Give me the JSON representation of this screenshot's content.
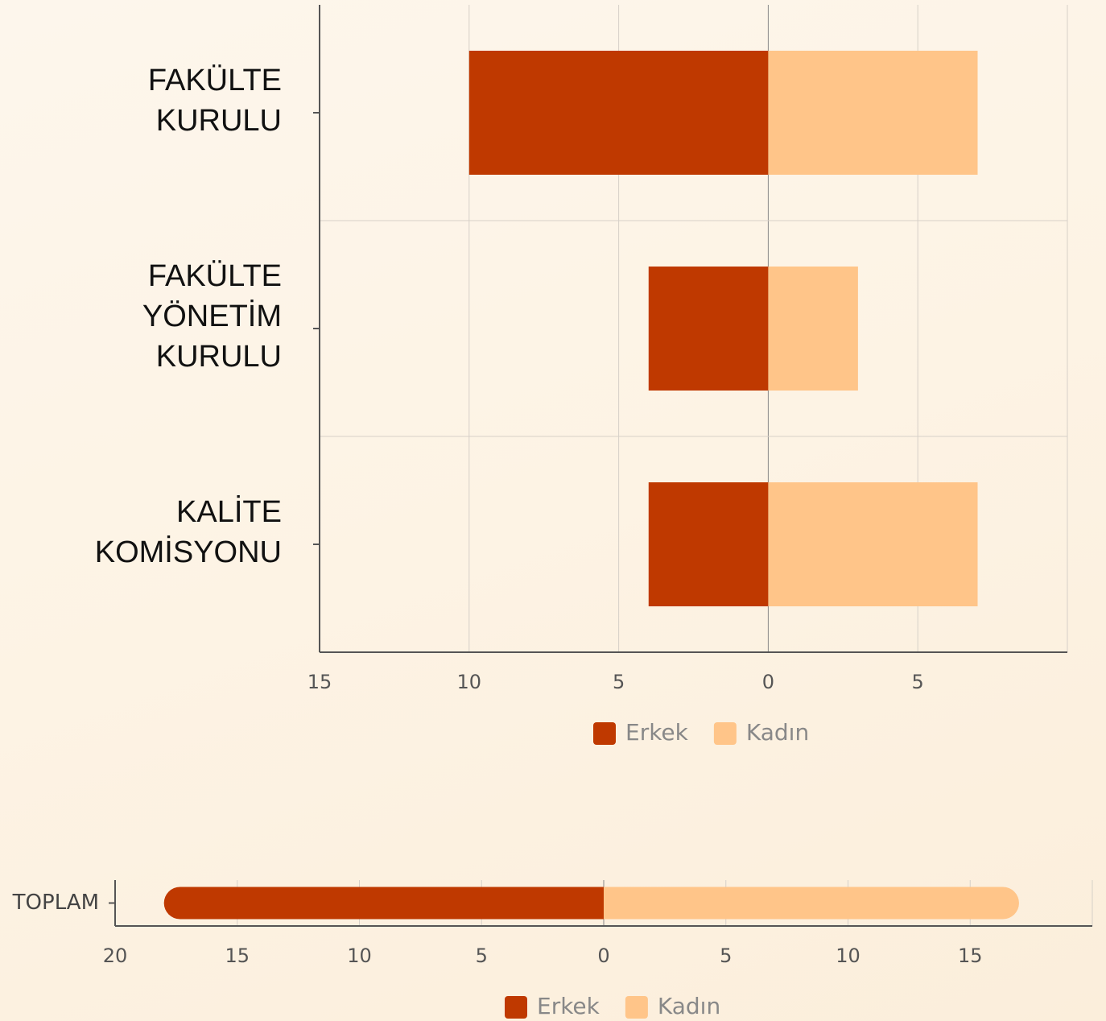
{
  "chart_data": [
    {
      "type": "bar",
      "orientation": "horizontal",
      "categories": [
        "FAKÜLTE KURULU",
        "FAKÜLTE YÖNETİM KURULU",
        "KALİTE KOMİSYONU"
      ],
      "series": [
        {
          "name": "Erkek",
          "color": "#bf3900",
          "values": [
            -10,
            -4,
            -4
          ]
        },
        {
          "name": "Kadın",
          "color": "#ffc589",
          "values": [
            7,
            3,
            7
          ]
        }
      ],
      "xlim": [
        -15,
        10
      ],
      "xticks": [
        {
          "value": -15,
          "label": "15"
        },
        {
          "value": -10,
          "label": "10"
        },
        {
          "value": -5,
          "label": "5"
        },
        0,
        5
      ],
      "grid": true,
      "legend": "bottom"
    },
    {
      "type": "bar",
      "orientation": "horizontal",
      "categories": [
        "TOPLAM"
      ],
      "series": [
        {
          "name": "Erkek",
          "color": "#bf3900",
          "values": [
            -18
          ]
        },
        {
          "name": "Kadın",
          "color": "#ffc589",
          "values": [
            17
          ]
        }
      ],
      "xlim": [
        -20,
        20
      ],
      "xticks": [
        {
          "value": -20,
          "label": "20"
        },
        {
          "value": -15,
          "label": "15"
        },
        {
          "value": -10,
          "label": "10"
        },
        {
          "value": -5,
          "label": "5"
        },
        0,
        5,
        10,
        15
      ],
      "grid": true,
      "legend": "bottom"
    }
  ]
}
